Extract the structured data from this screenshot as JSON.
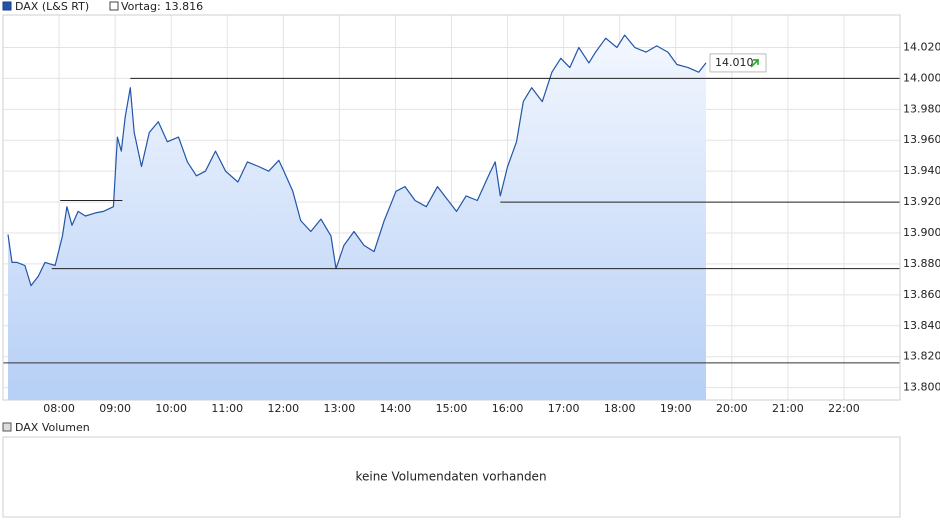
{
  "chart_data": {
    "type": "line",
    "x": [
      7.09,
      7.16,
      7.25,
      7.39,
      7.5,
      7.63,
      7.75,
      7.93,
      8.06,
      8.14,
      8.23,
      8.34,
      8.47,
      8.65,
      8.79,
      8.97,
      9.04,
      9.11,
      9.18,
      9.27,
      9.34,
      9.47,
      9.61,
      9.77,
      9.93,
      10.13,
      10.29,
      10.45,
      10.61,
      10.79,
      10.97,
      11.19,
      11.36,
      11.56,
      11.74,
      11.92,
      12.01,
      12.17,
      12.31,
      12.49,
      12.67,
      12.85,
      12.94,
      13.08,
      13.26,
      13.44,
      13.62,
      13.8,
      14.01,
      14.17,
      14.35,
      14.55,
      14.75,
      14.92,
      15.09,
      15.26,
      15.46,
      15.66,
      15.78,
      15.87,
      16.0,
      16.16,
      16.28,
      16.43,
      16.62,
      16.79,
      16.95,
      17.11,
      17.27,
      17.45,
      17.57,
      17.75,
      17.95,
      18.09,
      18.27,
      18.47,
      18.66,
      18.86,
      19.02,
      19.22,
      19.41,
      19.54
    ],
    "series": [
      {
        "name": "DAX (L&S RT)",
        "color": "#2255aa",
        "values": [
          13.899,
          13.881,
          13.881,
          13.879,
          13.866,
          13.872,
          13.881,
          13.879,
          13.898,
          13.917,
          13.905,
          13.914,
          13.911,
          13.913,
          13.914,
          13.917,
          13.962,
          13.953,
          13.975,
          13.994,
          13.965,
          13.943,
          13.965,
          13.972,
          13.959,
          13.962,
          13.946,
          13.937,
          13.94,
          13.953,
          13.94,
          13.933,
          13.946,
          13.943,
          13.94,
          13.947,
          13.94,
          13.927,
          13.908,
          13.901,
          13.909,
          13.898,
          13.877,
          13.892,
          13.901,
          13.892,
          13.888,
          13.908,
          13.927,
          13.93,
          13.921,
          13.917,
          13.93,
          13.922,
          13.914,
          13.924,
          13.921,
          13.937,
          13.946,
          13.924,
          13.943,
          13.959,
          13.985,
          13.994,
          13.985,
          14.004,
          14.013,
          14.007,
          14.02,
          14.01,
          14.017,
          14.026,
          14.02,
          14.028,
          14.02,
          14.017,
          14.021,
          14.017,
          14.009,
          14.007,
          14.004,
          14.01
        ]
      }
    ],
    "previous_close": {
      "label": "Vortag:",
      "value": 13.816
    },
    "last_price": {
      "value": 14.01,
      "label": "14.010"
    },
    "levels": [
      {
        "value": 14.0,
        "from": 9.27
      },
      {
        "value": 13.921,
        "from": 8.02,
        "to": 9.13
      },
      {
        "value": 13.92,
        "from": 15.87
      },
      {
        "value": 13.877,
        "from": 7.87
      }
    ],
    "xlim": [
      7,
      23
    ],
    "xticks": [
      {
        "value": 8,
        "label": "08:00"
      },
      {
        "value": 9,
        "label": "09:00"
      },
      {
        "value": 10,
        "label": "10:00"
      },
      {
        "value": 11,
        "label": "11:00"
      },
      {
        "value": 12,
        "label": "12:00"
      },
      {
        "value": 13,
        "label": "13:00"
      },
      {
        "value": 14,
        "label": "14:00"
      },
      {
        "value": 15,
        "label": "15:00"
      },
      {
        "value": 16,
        "label": "16:00"
      },
      {
        "value": 17,
        "label": "17:00"
      },
      {
        "value": 18,
        "label": "18:00"
      },
      {
        "value": 19,
        "label": "19:00"
      },
      {
        "value": 20,
        "label": "20:00"
      },
      {
        "value": 21,
        "label": "21:00"
      },
      {
        "value": 22,
        "label": "22:00"
      }
    ],
    "ylim": [
      13.792,
      14.041
    ],
    "yticks": [
      {
        "value": 13.8,
        "label": "13.800"
      },
      {
        "value": 13.82,
        "label": "13.820"
      },
      {
        "value": 13.84,
        "label": "13.840"
      },
      {
        "value": 13.86,
        "label": "13.860"
      },
      {
        "value": 13.88,
        "label": "13.880"
      },
      {
        "value": 13.9,
        "label": "13.900"
      },
      {
        "value": 13.92,
        "label": "13.920"
      },
      {
        "value": 13.94,
        "label": "13.940"
      },
      {
        "value": 13.96,
        "label": "13.960"
      },
      {
        "value": 13.98,
        "label": "13.980"
      },
      {
        "value": 14.0,
        "label": "14.000"
      },
      {
        "value": 14.02,
        "label": "14.020"
      }
    ],
    "grid": true
  },
  "volume_panel": {
    "legend": "DAX Volumen",
    "message": "keine Volumendaten vorhanden"
  }
}
